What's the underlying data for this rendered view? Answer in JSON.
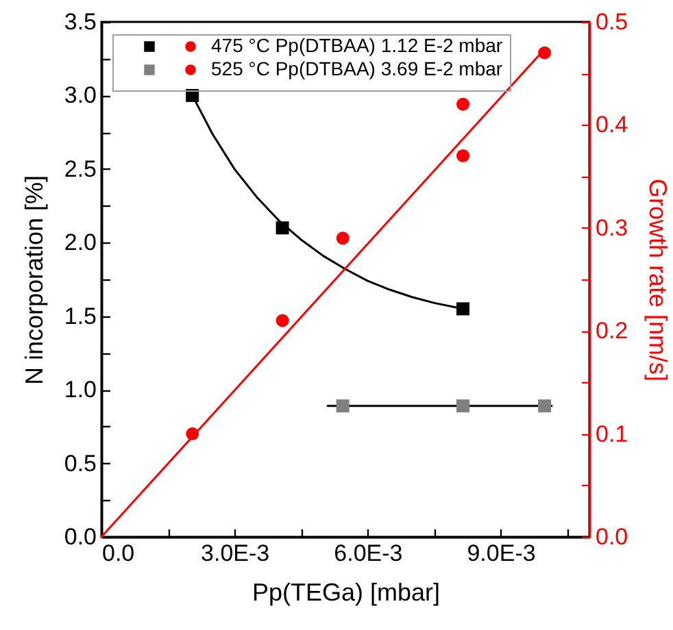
{
  "chart_data": {
    "type": "scatter",
    "xlabel": "Pp(TEGa) [mbar]",
    "ylabel": "N incorporation [%]",
    "y2label": "Growth rate [nm/s]",
    "xlim": [
      0,
      0.011
    ],
    "ylim": [
      0,
      3.5
    ],
    "y2lim": [
      0,
      0.5
    ],
    "xticks": [
      {
        "value": 0,
        "label": "0.0"
      },
      {
        "value": 0.0015,
        "label": null
      },
      {
        "value": 0.003,
        "label": "3.0E-3"
      },
      {
        "value": 0.0045,
        "label": null
      },
      {
        "value": 0.006,
        "label": "6.0E-3"
      },
      {
        "value": 0.0075,
        "label": null
      },
      {
        "value": 0.009,
        "label": "9.0E-3"
      },
      {
        "value": 0.0105,
        "label": null
      }
    ],
    "yticks": [
      {
        "value": 0,
        "label": "0.0"
      },
      {
        "value": 0.25,
        "label": null
      },
      {
        "value": 0.5,
        "label": "0.5"
      },
      {
        "value": 0.75,
        "label": null
      },
      {
        "value": 1,
        "label": "1.0"
      },
      {
        "value": 1.25,
        "label": null
      },
      {
        "value": 1.5,
        "label": "1.5"
      },
      {
        "value": 1.75,
        "label": null
      },
      {
        "value": 2,
        "label": "2.0"
      },
      {
        "value": 2.25,
        "label": null
      },
      {
        "value": 2.5,
        "label": "2.5"
      },
      {
        "value": 2.75,
        "label": null
      },
      {
        "value": 3,
        "label": "3.0"
      },
      {
        "value": 3.25,
        "label": null
      },
      {
        "value": 3.5,
        "label": "3.5"
      }
    ],
    "y2ticks": [
      {
        "value": 0,
        "label": "0.0"
      },
      {
        "value": 0.05,
        "label": null
      },
      {
        "value": 0.1,
        "label": "0.1"
      },
      {
        "value": 0.15,
        "label": null
      },
      {
        "value": 0.2,
        "label": "0.2"
      },
      {
        "value": 0.25,
        "label": null
      },
      {
        "value": 0.3,
        "label": "0.3"
      },
      {
        "value": 0.35,
        "label": null
      },
      {
        "value": 0.4,
        "label": "0.4"
      },
      {
        "value": 0.45,
        "label": null
      },
      {
        "value": 0.5,
        "label": "0.5"
      }
    ],
    "legend": "top left",
    "grid": false,
    "series": [
      {
        "type": "line",
        "color": "#000000",
        "marker": "none",
        "line_style": "solid",
        "x": [
          0.00205,
          0.0025,
          0.003,
          0.0035,
          0.004,
          0.0045,
          0.005,
          0.0055,
          0.006,
          0.0065,
          0.007,
          0.0075,
          0.00815
        ],
        "values": [
          3.0,
          2.74,
          2.5,
          2.31,
          2.15,
          2.02,
          1.91,
          1.82,
          1.74,
          1.68,
          1.63,
          1.59,
          1.55
        ]
      },
      {
        "type": "line",
        "color": "#000000",
        "marker": "none",
        "line_style": "solid",
        "x": [
          0.0051,
          0.01015
        ],
        "values": [
          0.89,
          0.89
        ]
      },
      {
        "type": "line",
        "color": "#ff0000",
        "marker": "none",
        "line_style": "solid",
        "axis": "y2",
        "x": [
          0,
          0.01
        ],
        "values": [
          0,
          0.474
        ]
      },
      {
        "color": "#000000",
        "marker": "square",
        "x": [
          0.00205,
          0.00408,
          0.00815
        ],
        "values": [
          3.0,
          2.1,
          1.55
        ]
      },
      {
        "name": "475 °C Pp(DTBAA) 1.12 E-2 mbar",
        "color": "#ff0000",
        "marker": "circle",
        "axis": "y2",
        "x": [
          0.00205,
          0.00408,
          0.00815
        ],
        "values": [
          0.1,
          0.21,
          0.37
        ]
      },
      {
        "color": "#808080",
        "marker": "square",
        "x": [
          0.00544,
          0.00815,
          0.00999
        ],
        "values": [
          0.89,
          0.89,
          0.89
        ]
      },
      {
        "name": "525 °C Pp(DTBAA) 3.69 E-2 mbar",
        "color": "#ff0000",
        "marker": "circle",
        "axis": "y2",
        "x": [
          0.00544,
          0.00815,
          0.00999
        ],
        "values": [
          0.29,
          0.42,
          0.47
        ]
      }
    ]
  }
}
